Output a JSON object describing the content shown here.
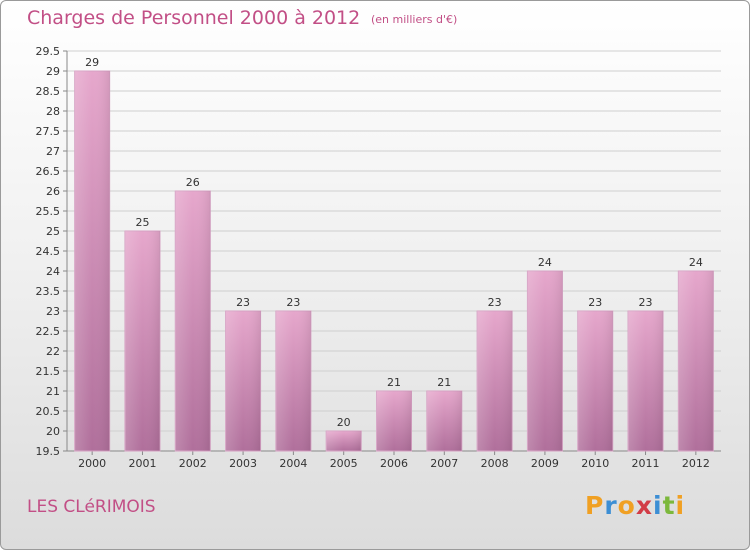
{
  "header": {
    "title": "Charges de Personnel 2000 à 2012",
    "unit": "(en milliers d'€)"
  },
  "footer": {
    "commune": "LES CLéRIMOIS",
    "brand": "Proxiti",
    "brand_colors": [
      "#f0a023",
      "#3c8ed4",
      "#f0a023",
      "#d23c46",
      "#3c8ed4",
      "#7cb83c",
      "#f0a023"
    ]
  },
  "colors": {
    "text_accent": "#c24f86",
    "bar_top": "#e6a7cc",
    "bar_bottom": "#b06f9b"
  },
  "chart_data": {
    "type": "bar",
    "title": "Charges de Personnel 2000 à 2012",
    "subtitle": "(en milliers d'€)",
    "xlabel": "",
    "ylabel": "",
    "categories": [
      "2000",
      "2001",
      "2002",
      "2003",
      "2004",
      "2005",
      "2006",
      "2007",
      "2008",
      "2009",
      "2010",
      "2011",
      "2012"
    ],
    "values": [
      29,
      25,
      26,
      23,
      23,
      20,
      21,
      21,
      23,
      24,
      23,
      23,
      24
    ],
    "ylim": [
      19.5,
      29.5
    ],
    "yticks": [
      19.5,
      20,
      20.5,
      21,
      21.5,
      22,
      22.5,
      23,
      23.5,
      24,
      24.5,
      25,
      25.5,
      26,
      26.5,
      27,
      27.5,
      28,
      28.5,
      29,
      29.5
    ],
    "grid": true,
    "legend": "none"
  }
}
